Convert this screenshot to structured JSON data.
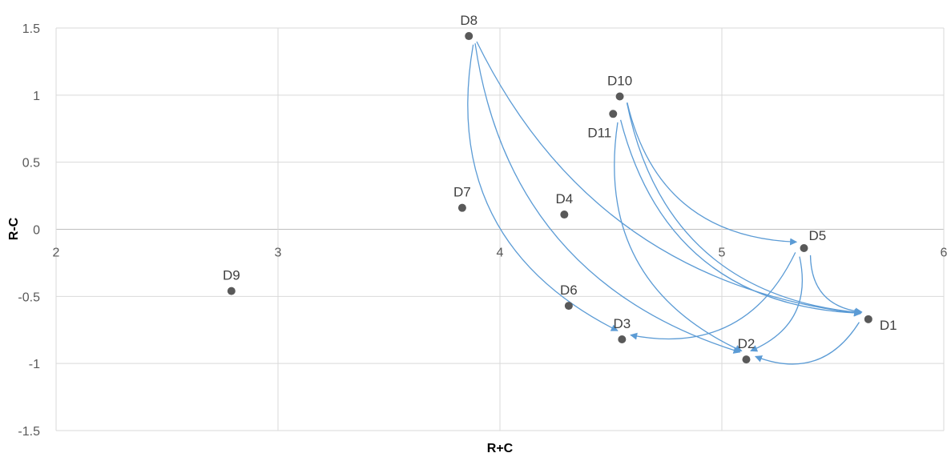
{
  "chart_data": {
    "type": "scatter",
    "title": "",
    "xlabel": "R+C",
    "ylabel": "R-C",
    "xlim": [
      2,
      6
    ],
    "ylim": [
      -1.5,
      1.5
    ],
    "xticks": [
      2,
      3,
      4,
      5,
      6
    ],
    "yticks": [
      -1.5,
      -1,
      -0.5,
      0,
      0.5,
      1,
      1.5
    ],
    "xtick_labels": [
      "2",
      "3",
      "4",
      "5",
      "6"
    ],
    "ytick_labels": [
      "-1.5",
      "-1",
      "-0.5",
      "0",
      "0.5",
      "1",
      "1.5"
    ],
    "grid": true,
    "legend": "none",
    "marker_color": "#595959",
    "arrow_color": "#5b9bd5",
    "points": [
      {
        "label": "D1",
        "x": 5.66,
        "y": -0.67
      },
      {
        "label": "D2",
        "x": 5.11,
        "y": -0.97
      },
      {
        "label": "D3",
        "x": 4.55,
        "y": -0.82
      },
      {
        "label": "D4",
        "x": 4.29,
        "y": 0.11
      },
      {
        "label": "D5",
        "x": 5.37,
        "y": -0.14
      },
      {
        "label": "D6",
        "x": 4.31,
        "y": -0.57
      },
      {
        "label": "D7",
        "x": 3.83,
        "y": 0.16
      },
      {
        "label": "D8",
        "x": 3.86,
        "y": 1.44
      },
      {
        "label": "D9",
        "x": 2.79,
        "y": -0.46
      },
      {
        "label": "D10",
        "x": 4.54,
        "y": 0.99
      },
      {
        "label": "D11",
        "x": 4.51,
        "y": 0.86
      }
    ],
    "relations": [
      {
        "from": "D8",
        "to": "D1"
      },
      {
        "from": "D8",
        "to": "D3"
      },
      {
        "from": "D8",
        "to": "D2"
      },
      {
        "from": "D10",
        "to": "D5"
      },
      {
        "from": "D10",
        "to": "D1"
      },
      {
        "from": "D11",
        "to": "D2"
      },
      {
        "from": "D11",
        "to": "D1"
      },
      {
        "from": "D5",
        "to": "D3"
      },
      {
        "from": "D5",
        "to": "D2"
      },
      {
        "from": "D5",
        "to": "D1"
      },
      {
        "from": "D1",
        "to": "D2"
      }
    ]
  }
}
